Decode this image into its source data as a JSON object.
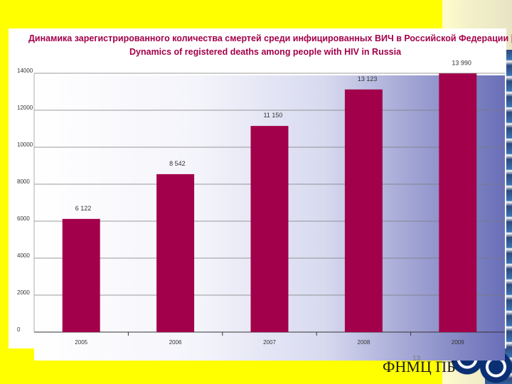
{
  "slide": {
    "page_number": "13",
    "footer_text": "ФНМЦ ПБ",
    "colors": {
      "background": "#ffff00",
      "bar": "#a3004b",
      "title": "#a3004b"
    }
  },
  "chart_data": {
    "type": "bar",
    "title": "Динамика зарегистрированного количества смертей среди инфицированных ВИЧ в Российской Федерации |",
    "subtitle": "Dynamics of registered deaths among people with HIV in Russia",
    "categories": [
      "2005",
      "2006",
      "2007",
      "2008",
      "2009"
    ],
    "values": [
      6122,
      8542,
      11150,
      13123,
      13990
    ],
    "value_labels": [
      "6 122",
      "8 542",
      "11 150",
      "13 123",
      "13 990"
    ],
    "ylim": [
      0,
      14000
    ],
    "yticks": [
      0,
      2000,
      4000,
      6000,
      8000,
      10000,
      12000,
      14000
    ],
    "grid": "horizontal",
    "xlabel": "",
    "ylabel": ""
  }
}
